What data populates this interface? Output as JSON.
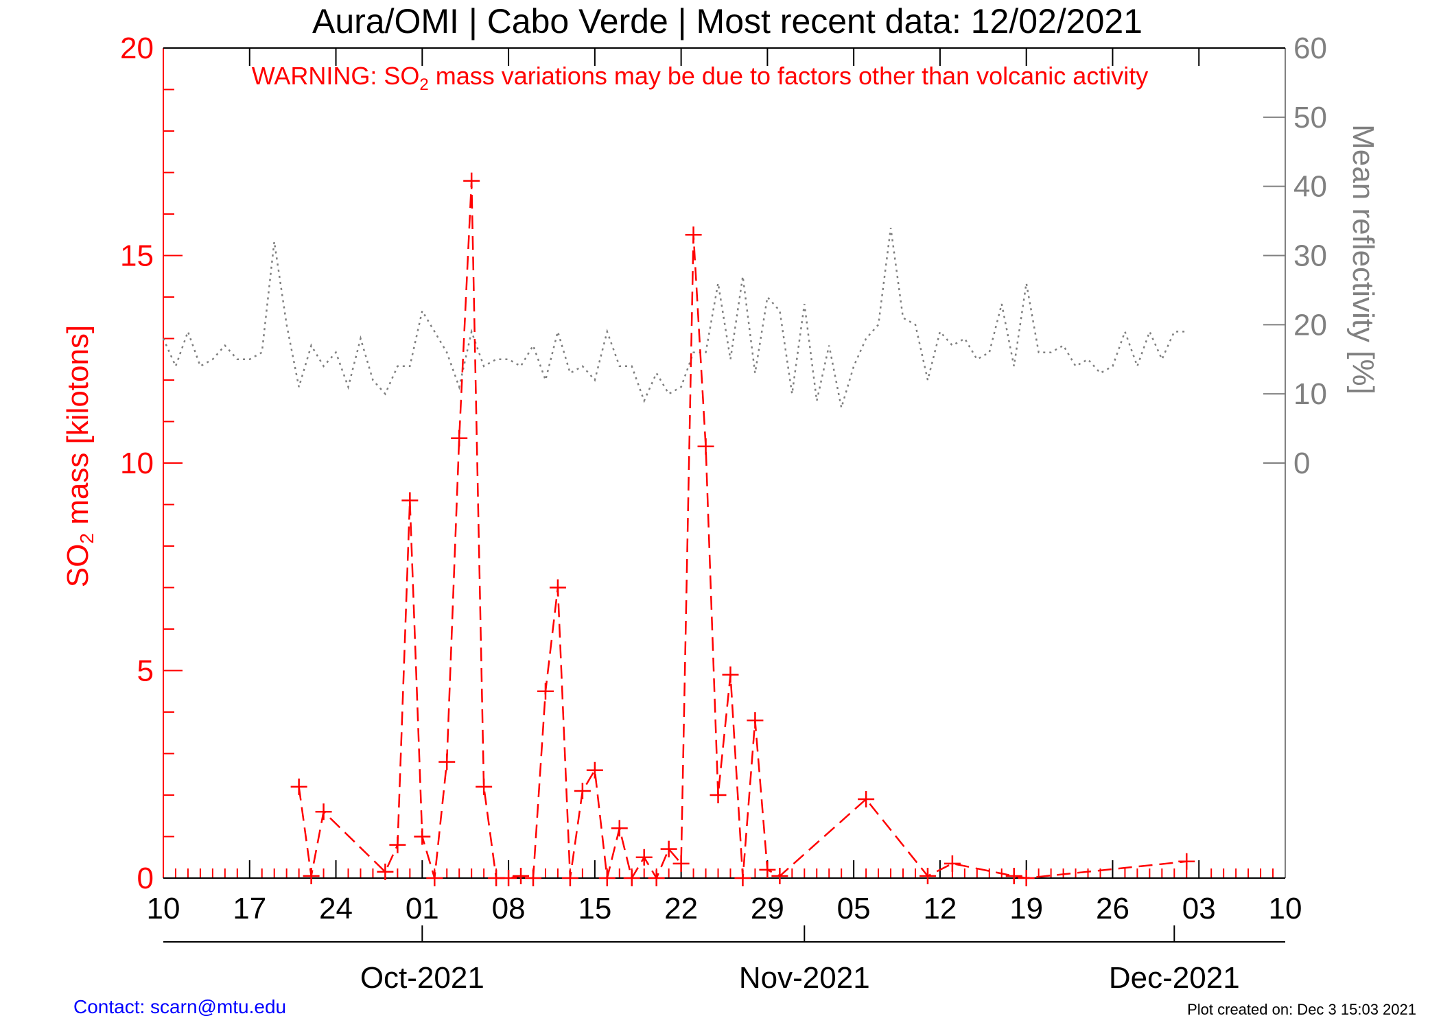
{
  "title": "Aura/OMI | Cabo Verde | Most recent data: 12/02/2021",
  "warning": {
    "prefix": "WARNING: SO",
    "subscript": "2",
    "suffix": " mass variations may be due to factors other than volcanic activity"
  },
  "left_axis_label": {
    "prefix": "SO",
    "subscript": "2",
    "suffix": " mass [kilotons]"
  },
  "right_axis_label": "Mean reflectivity [%]",
  "footer": {
    "contact": "Contact: scarn@mtu.edu",
    "created": "Plot created on: Dec  3 15:03 2021"
  },
  "colors": {
    "so2": "#ff0000",
    "reflectivity": "#808080",
    "axis": "#000000",
    "contact": "#0000ff"
  },
  "chart_data": {
    "type": "line",
    "x_domain": [
      "2021-09-10",
      "2021-12-10"
    ],
    "x_tick_labels": [
      {
        "date": "2021-09-10",
        "label": "10"
      },
      {
        "date": "2021-09-17",
        "label": "17"
      },
      {
        "date": "2021-09-24",
        "label": "24"
      },
      {
        "date": "2021-10-01",
        "label": "01"
      },
      {
        "date": "2021-10-08",
        "label": "08"
      },
      {
        "date": "2021-10-15",
        "label": "15"
      },
      {
        "date": "2021-10-22",
        "label": "22"
      },
      {
        "date": "2021-10-29",
        "label": "29"
      },
      {
        "date": "2021-11-05",
        "label": "05"
      },
      {
        "date": "2021-11-12",
        "label": "12"
      },
      {
        "date": "2021-11-19",
        "label": "19"
      },
      {
        "date": "2021-11-26",
        "label": "26"
      },
      {
        "date": "2021-12-03",
        "label": "03"
      },
      {
        "date": "2021-12-10",
        "label": "10"
      }
    ],
    "month_labels": [
      {
        "date": "2021-10-01",
        "label": "Oct-2021"
      },
      {
        "date": "2021-11-01",
        "label": "Nov-2021"
      },
      {
        "date": "2021-12-01",
        "label": "Dec-2021"
      }
    ],
    "left_axis": {
      "ylim": [
        0,
        20
      ],
      "ticks": [
        0,
        5,
        10,
        15,
        20
      ]
    },
    "right_axis": {
      "ylim": [
        -60,
        60
      ],
      "ticks": [
        0,
        10,
        20,
        30,
        40,
        50,
        60
      ]
    },
    "series": [
      {
        "axis": "left",
        "style": "dashed-plus",
        "x": [
          "2021-09-21",
          "2021-09-22",
          "2021-09-23",
          "2021-09-28",
          "2021-09-29",
          "2021-09-30",
          "2021-10-01",
          "2021-10-02",
          "2021-10-03",
          "2021-10-04",
          "2021-10-05",
          "2021-10-06",
          "2021-10-07",
          "2021-10-08",
          "2021-10-09",
          "2021-10-10",
          "2021-10-11",
          "2021-10-12",
          "2021-10-13",
          "2021-10-14",
          "2021-10-15",
          "2021-10-16",
          "2021-10-17",
          "2021-10-18",
          "2021-10-19",
          "2021-10-20",
          "2021-10-21",
          "2021-10-22",
          "2021-10-23",
          "2021-10-24",
          "2021-10-25",
          "2021-10-26",
          "2021-10-27",
          "2021-10-28",
          "2021-10-29",
          "2021-10-30",
          "2021-11-06",
          "2021-11-11",
          "2021-11-13",
          "2021-11-18",
          "2021-11-19",
          "2021-12-02"
        ],
        "y": [
          2.2,
          0.05,
          1.6,
          0.15,
          0.8,
          9.1,
          1.0,
          0.0,
          2.8,
          10.6,
          16.8,
          2.2,
          0.0,
          0.0,
          0.05,
          0.0,
          4.5,
          7.0,
          0.0,
          2.1,
          2.6,
          0.0,
          1.2,
          0.0,
          0.5,
          0.0,
          0.7,
          0.35,
          15.5,
          10.4,
          2.0,
          4.9,
          0.0,
          3.8,
          0.2,
          0.05,
          1.9,
          0.05,
          0.35,
          0.05,
          0.0,
          0.4
        ]
      },
      {
        "axis": "right",
        "style": "dotted",
        "x": [
          "2021-09-10",
          "2021-09-11",
          "2021-09-12",
          "2021-09-13",
          "2021-09-14",
          "2021-09-15",
          "2021-09-16",
          "2021-09-17",
          "2021-09-18",
          "2021-09-19",
          "2021-09-20",
          "2021-09-21",
          "2021-09-22",
          "2021-09-23",
          "2021-09-24",
          "2021-09-25",
          "2021-09-26",
          "2021-09-27",
          "2021-09-28",
          "2021-09-29",
          "2021-09-30",
          "2021-10-01",
          "2021-10-02",
          "2021-10-03",
          "2021-10-04",
          "2021-10-05",
          "2021-10-06",
          "2021-10-07",
          "2021-10-08",
          "2021-10-09",
          "2021-10-10",
          "2021-10-11",
          "2021-10-12",
          "2021-10-13",
          "2021-10-14",
          "2021-10-15",
          "2021-10-16",
          "2021-10-17",
          "2021-10-18",
          "2021-10-19",
          "2021-10-20",
          "2021-10-21",
          "2021-10-22",
          "2021-10-23",
          "2021-10-24",
          "2021-10-25",
          "2021-10-26",
          "2021-10-27",
          "2021-10-28",
          "2021-10-29",
          "2021-10-30",
          "2021-10-31",
          "2021-11-01",
          "2021-11-02",
          "2021-11-03",
          "2021-11-04",
          "2021-11-05",
          "2021-11-06",
          "2021-11-07",
          "2021-11-08",
          "2021-11-09",
          "2021-11-10",
          "2021-11-11",
          "2021-11-12",
          "2021-11-13",
          "2021-11-14",
          "2021-11-15",
          "2021-11-16",
          "2021-11-17",
          "2021-11-18",
          "2021-11-19",
          "2021-11-20",
          "2021-11-21",
          "2021-11-22",
          "2021-11-23",
          "2021-11-24",
          "2021-11-25",
          "2021-11-26",
          "2021-11-27",
          "2021-11-28",
          "2021-11-29",
          "2021-11-30",
          "2021-12-01",
          "2021-12-02"
        ],
        "y": [
          18,
          14,
          19,
          14,
          15,
          17,
          15,
          15,
          16,
          32,
          20,
          11,
          17,
          14,
          16,
          11,
          18,
          12,
          10,
          14,
          14,
          22,
          19,
          16,
          11,
          19,
          14,
          15,
          15,
          14,
          17,
          12,
          19,
          13,
          14,
          12,
          19,
          14,
          14,
          9,
          13,
          10,
          11,
          16,
          16,
          26,
          15,
          27,
          13,
          24,
          22,
          10,
          23,
          9,
          17,
          8,
          14,
          18,
          20,
          34,
          21,
          20,
          12,
          19,
          17,
          18,
          15,
          16,
          23,
          14,
          26,
          16,
          16,
          17,
          14,
          15,
          13,
          14,
          19,
          14,
          19,
          15,
          19,
          19
        ]
      }
    ]
  }
}
